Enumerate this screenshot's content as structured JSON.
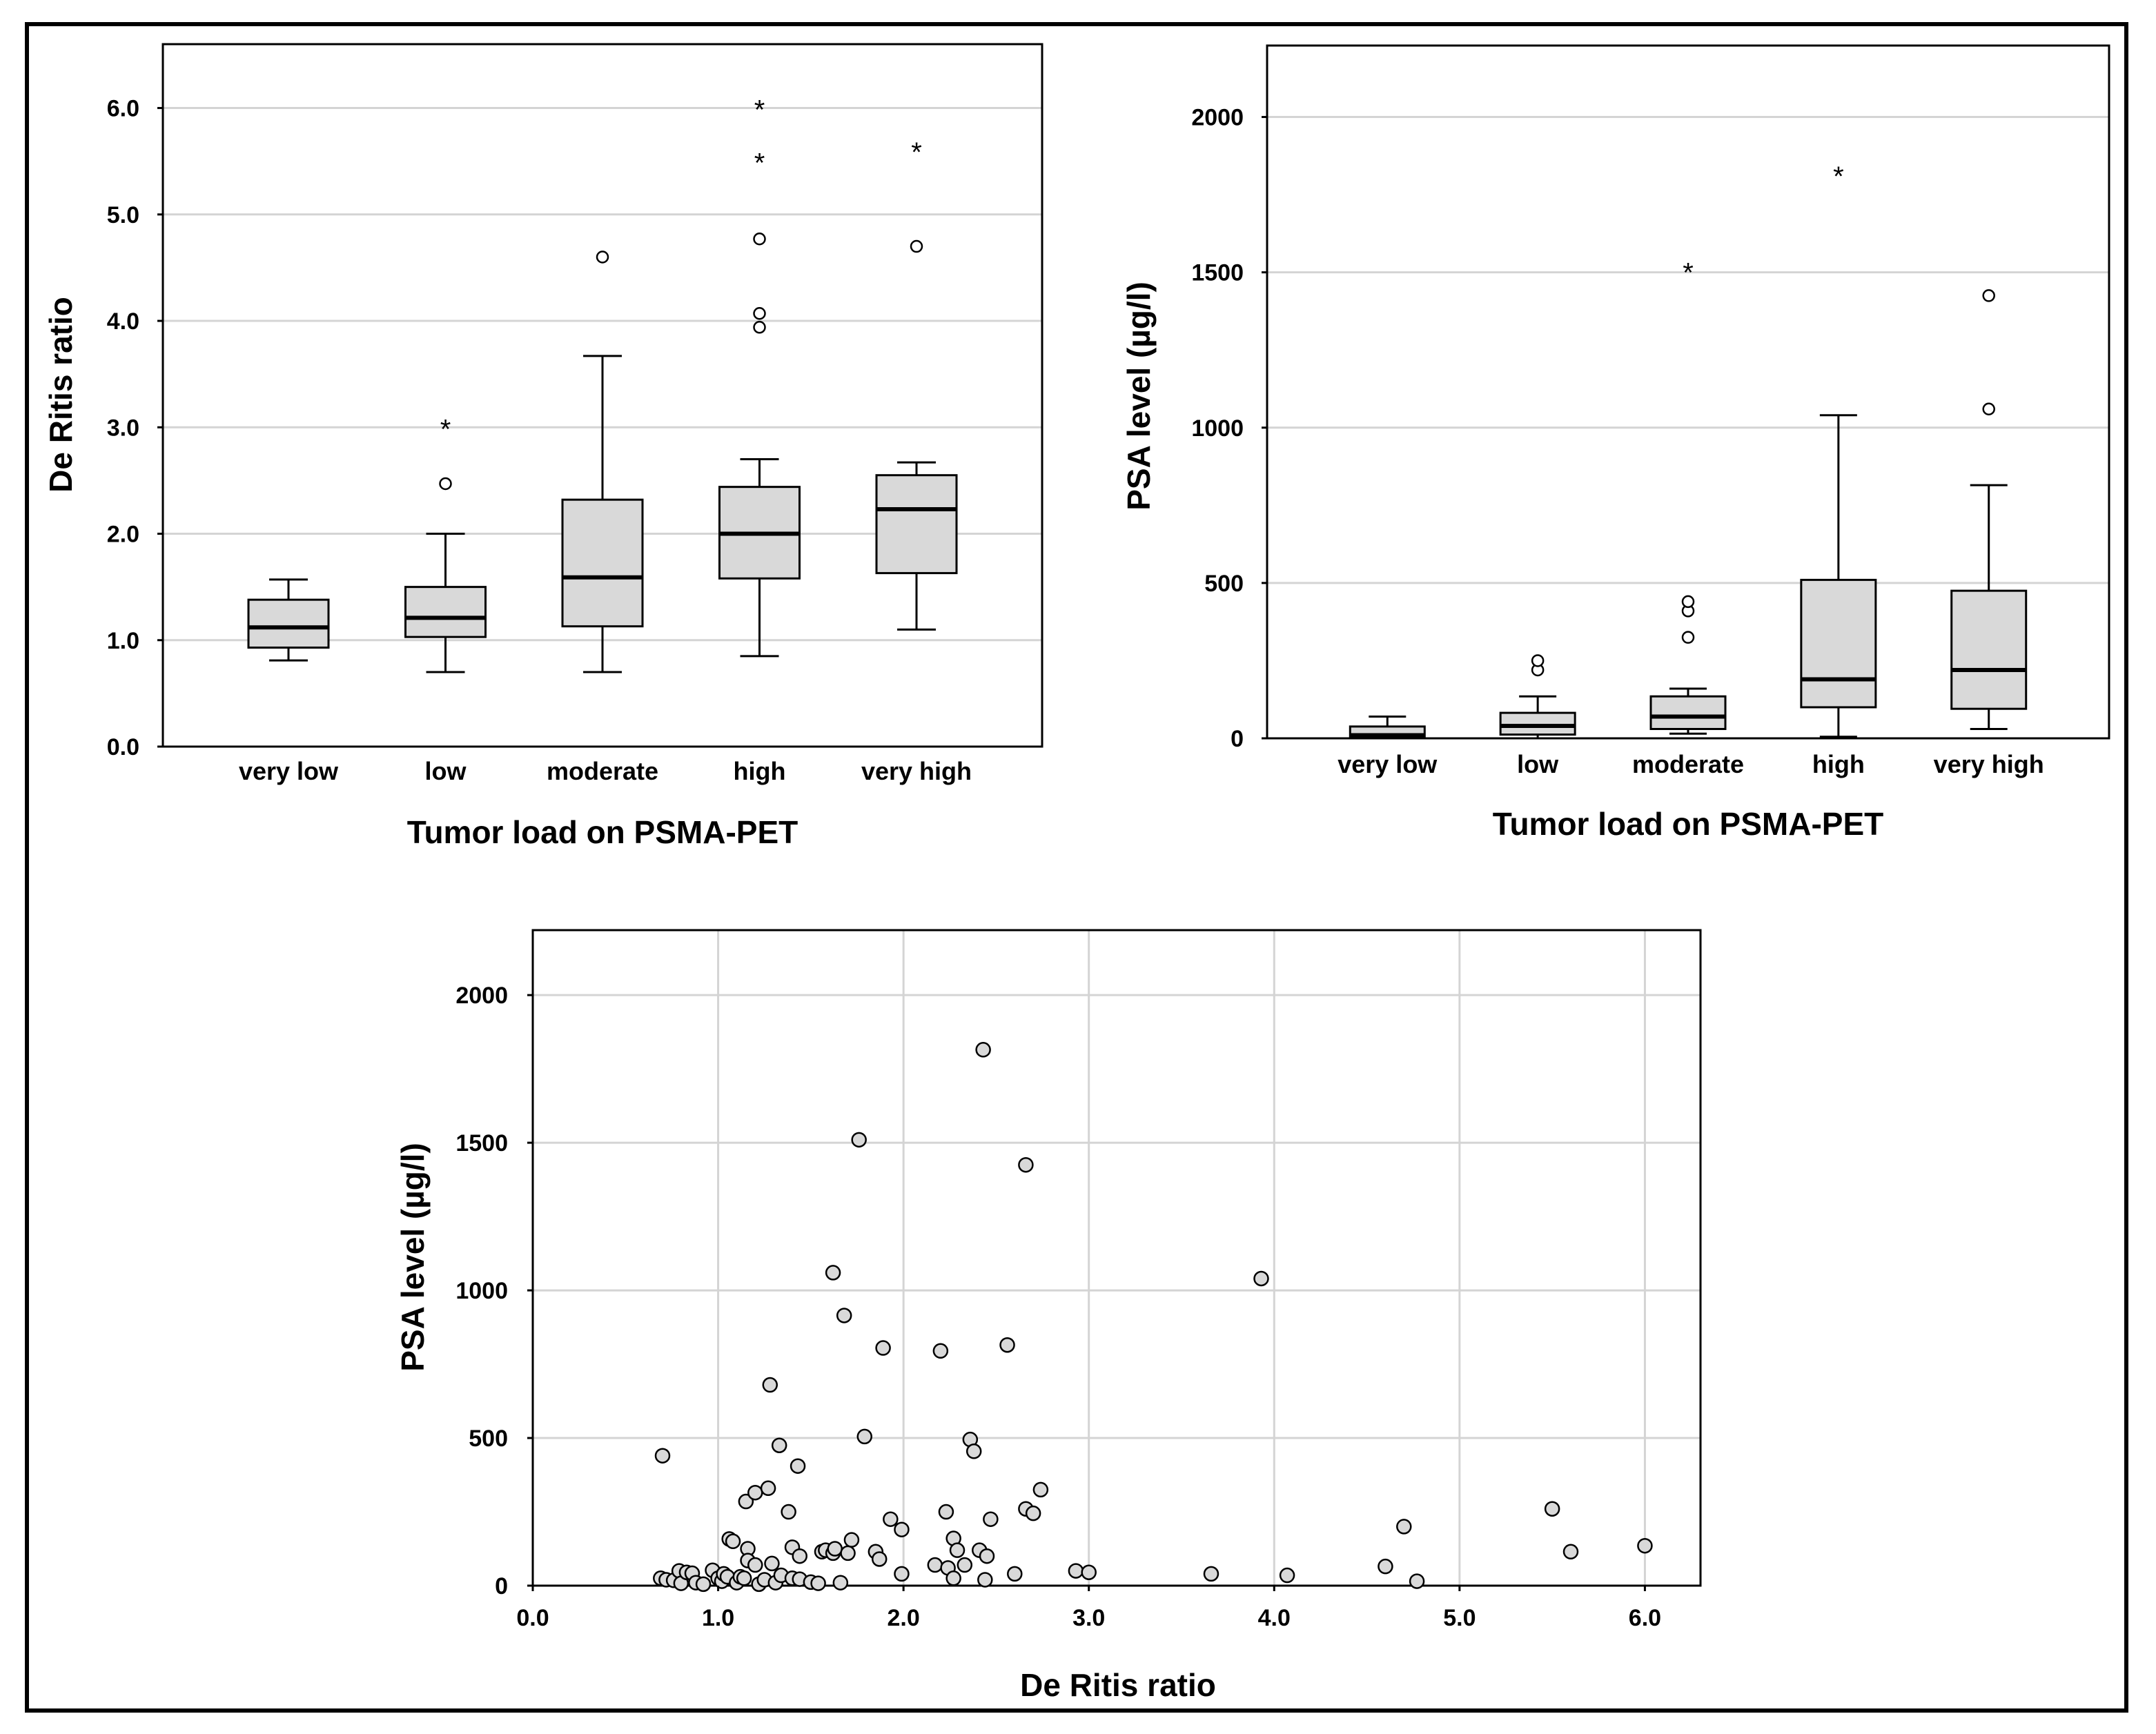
{
  "chart_data": [
    {
      "type": "box",
      "id": "deritis-box",
      "ylabel": "De Ritis ratio",
      "xlabel": "Tumor load on PSMA-PET",
      "ylim": [
        0,
        6.6
      ],
      "yticks": [
        0,
        1,
        2,
        3,
        4,
        5,
        6
      ],
      "ytick_labels": [
        "0.0",
        "1.0",
        "2.0",
        "3.0",
        "4.0",
        "5.0",
        "6.0"
      ],
      "grid": true,
      "categories": [
        "very low",
        "low",
        "moderate",
        "high",
        "very high"
      ],
      "boxes": [
        {
          "min": 0.81,
          "q1": 0.93,
          "median": 1.12,
          "q3": 1.38,
          "max": 1.57,
          "outliers": [],
          "extremes": []
        },
        {
          "min": 0.7,
          "q1": 1.03,
          "median": 1.21,
          "q3": 1.5,
          "max": 2.0,
          "outliers": [
            2.47
          ],
          "extremes": [
            3.0
          ]
        },
        {
          "min": 0.7,
          "q1": 1.13,
          "median": 1.59,
          "q3": 2.32,
          "max": 3.67,
          "outliers": [
            4.6
          ],
          "extremes": []
        },
        {
          "min": 0.85,
          "q1": 1.58,
          "median": 2.0,
          "q3": 2.44,
          "max": 2.7,
          "outliers": [
            3.94,
            4.07,
            4.77
          ],
          "extremes": [
            5.5,
            6.0
          ]
        },
        {
          "min": 1.1,
          "q1": 1.63,
          "median": 2.23,
          "q3": 2.55,
          "max": 2.67,
          "outliers": [
            4.7
          ],
          "extremes": [
            5.6
          ]
        }
      ]
    },
    {
      "type": "box",
      "id": "psa-box",
      "ylabel": "PSA level (µg/l)",
      "xlabel": "Tumor load on PSMA-PET",
      "ylim": [
        0,
        2230
      ],
      "yticks": [
        0,
        500,
        1000,
        1500,
        2000
      ],
      "ytick_labels": [
        "0",
        "500",
        "1000",
        "1500",
        "2000"
      ],
      "grid": true,
      "categories": [
        "very low",
        "low",
        "moderate",
        "high",
        "very high"
      ],
      "boxes": [
        {
          "min": 0,
          "q1": 3,
          "median": 10,
          "q3": 38,
          "max": 70,
          "outliers": [],
          "extremes": []
        },
        {
          "min": 0,
          "q1": 12,
          "median": 40,
          "q3": 82,
          "max": 135,
          "outliers": [
            220,
            250
          ],
          "extremes": []
        },
        {
          "min": 15,
          "q1": 30,
          "median": 70,
          "q3": 135,
          "max": 160,
          "outliers": [
            325,
            410,
            440
          ],
          "extremes": [
            1505
          ]
        },
        {
          "min": 5,
          "q1": 100,
          "median": 190,
          "q3": 510,
          "max": 1040,
          "outliers": [],
          "extremes": [
            1815
          ]
        },
        {
          "min": 30,
          "q1": 95,
          "median": 220,
          "q3": 475,
          "max": 815,
          "outliers": [
            1060,
            1425
          ],
          "extremes": []
        }
      ]
    },
    {
      "type": "scatter",
      "id": "scatter",
      "xlabel": "De Ritis ratio",
      "ylabel": "PSA level (µg/l)",
      "xlim": [
        0,
        6.3
      ],
      "ylim": [
        0,
        2220
      ],
      "xticks": [
        0,
        1,
        2,
        3,
        4,
        5,
        6
      ],
      "xtick_labels": [
        "0.0",
        "1.0",
        "2.0",
        "3.0",
        "4.0",
        "5.0",
        "6.0"
      ],
      "yticks": [
        0,
        500,
        1000,
        1500,
        2000
      ],
      "ytick_labels": [
        "0",
        "500",
        "1000",
        "1500",
        "2000"
      ],
      "grid": true,
      "points": [
        [
          0.7,
          440
        ],
        [
          0.69,
          25
        ],
        [
          0.72,
          20
        ],
        [
          0.76,
          18
        ],
        [
          0.79,
          50
        ],
        [
          0.8,
          8
        ],
        [
          0.83,
          45
        ],
        [
          0.86,
          42
        ],
        [
          0.88,
          10
        ],
        [
          0.92,
          5
        ],
        [
          0.97,
          52
        ],
        [
          1.0,
          25
        ],
        [
          1.02,
          15
        ],
        [
          1.03,
          40
        ],
        [
          1.05,
          30
        ],
        [
          1.06,
          158
        ],
        [
          1.08,
          150
        ],
        [
          1.1,
          10
        ],
        [
          1.12,
          30
        ],
        [
          1.14,
          25
        ],
        [
          1.15,
          285
        ],
        [
          1.16,
          125
        ],
        [
          1.16,
          85
        ],
        [
          1.2,
          315
        ],
        [
          1.2,
          70
        ],
        [
          1.22,
          5
        ],
        [
          1.25,
          20
        ],
        [
          1.27,
          330
        ],
        [
          1.28,
          680
        ],
        [
          1.29,
          75
        ],
        [
          1.31,
          10
        ],
        [
          1.33,
          475
        ],
        [
          1.34,
          35
        ],
        [
          1.38,
          250
        ],
        [
          1.4,
          130
        ],
        [
          1.4,
          25
        ],
        [
          1.43,
          405
        ],
        [
          1.44,
          100
        ],
        [
          1.44,
          22
        ],
        [
          1.5,
          12
        ],
        [
          1.54,
          8
        ],
        [
          1.56,
          115
        ],
        [
          1.58,
          120
        ],
        [
          1.62,
          1060
        ],
        [
          1.62,
          110
        ],
        [
          1.63,
          125
        ],
        [
          1.66,
          10
        ],
        [
          1.68,
          915
        ],
        [
          1.7,
          110
        ],
        [
          1.72,
          155
        ],
        [
          1.76,
          1510
        ],
        [
          1.79,
          505
        ],
        [
          1.85,
          115
        ],
        [
          1.87,
          90
        ],
        [
          1.89,
          805
        ],
        [
          1.93,
          225
        ],
        [
          1.99,
          40
        ],
        [
          1.99,
          190
        ],
        [
          2.17,
          70
        ],
        [
          2.2,
          795
        ],
        [
          2.23,
          250
        ],
        [
          2.24,
          60
        ],
        [
          2.27,
          160
        ],
        [
          2.27,
          25
        ],
        [
          2.29,
          120
        ],
        [
          2.33,
          70
        ],
        [
          2.36,
          495
        ],
        [
          2.38,
          455
        ],
        [
          2.41,
          120
        ],
        [
          2.43,
          1815
        ],
        [
          2.44,
          20
        ],
        [
          2.45,
          100
        ],
        [
          2.47,
          225
        ],
        [
          2.56,
          815
        ],
        [
          2.6,
          40
        ],
        [
          2.66,
          1425
        ],
        [
          2.66,
          260
        ],
        [
          2.7,
          245
        ],
        [
          2.74,
          325
        ],
        [
          2.93,
          50
        ],
        [
          3.0,
          45
        ],
        [
          3.66,
          40
        ],
        [
          3.93,
          1040
        ],
        [
          4.07,
          35
        ],
        [
          4.6,
          65
        ],
        [
          4.7,
          200
        ],
        [
          4.77,
          15
        ],
        [
          5.5,
          260
        ],
        [
          5.6,
          115
        ],
        [
          6.0,
          135
        ]
      ]
    }
  ]
}
